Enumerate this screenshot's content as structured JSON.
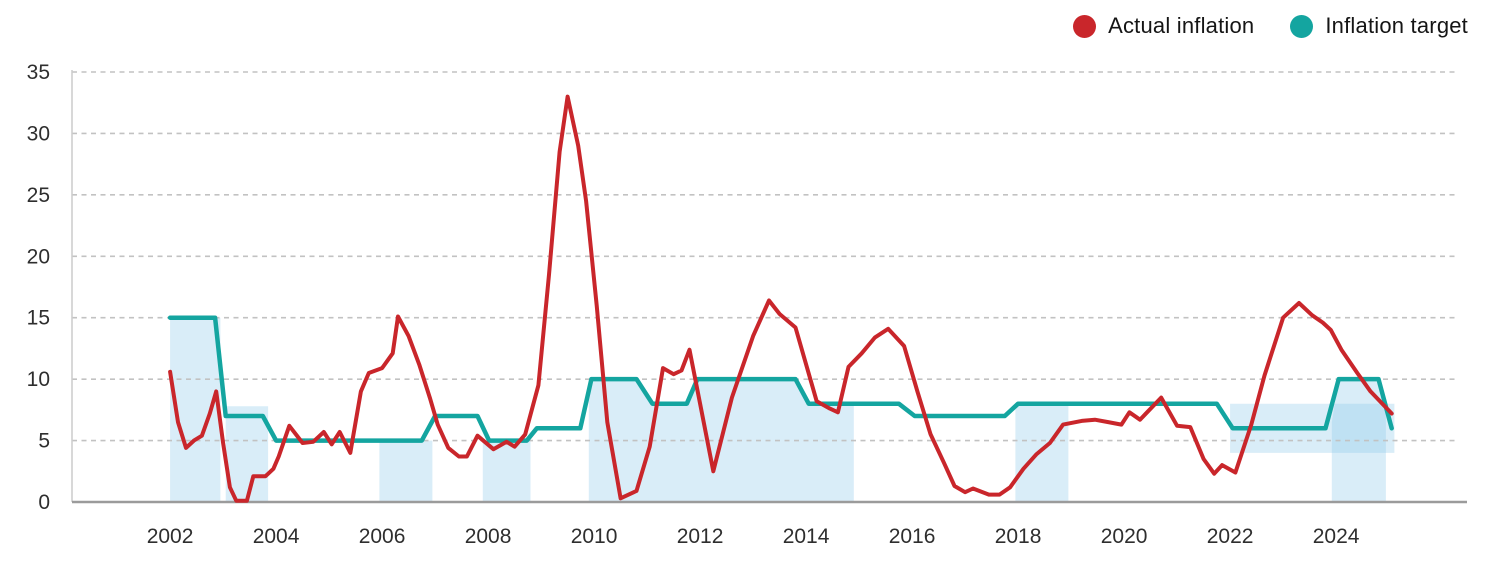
{
  "legend": {
    "items": [
      {
        "name": "actual",
        "label": "Actual inflation",
        "color": "#c9262b"
      },
      {
        "name": "target",
        "label": "Inflation target",
        "color": "#14a5a0"
      }
    ],
    "position": "top-right"
  },
  "chart_data": {
    "type": "line",
    "title": "",
    "xlabel": "",
    "ylabel": "",
    "grid": "horizontal-dashed",
    "xlim": [
      2000.15,
      2026.47
    ],
    "ylim": [
      0,
      35
    ],
    "x_ticks": [
      2002,
      2004,
      2006,
      2008,
      2010,
      2012,
      2014,
      2016,
      2018,
      2020,
      2022,
      2024
    ],
    "y_ticks": [
      0,
      5,
      10,
      15,
      20,
      25,
      30,
      35
    ],
    "colors": {
      "actual_line": "#c9262b",
      "target_line": "#14a5a0",
      "band_fill": "rgba(141,200,235,0.33)",
      "gridline": "#c2c2c2",
      "axis_line": "#9b9b9b",
      "spine": "#cccccc",
      "tick_text": "#2e2e2e"
    },
    "series": [
      {
        "name": "Actual inflation",
        "points": [
          [
            2002.0,
            10.6
          ],
          [
            2002.15,
            6.5
          ],
          [
            2002.3,
            4.4
          ],
          [
            2002.45,
            5.0
          ],
          [
            2002.6,
            5.4
          ],
          [
            2002.75,
            7.2
          ],
          [
            2002.87,
            9.0
          ],
          [
            2003.0,
            4.8
          ],
          [
            2003.13,
            1.2
          ],
          [
            2003.25,
            0.1
          ],
          [
            2003.45,
            0.1
          ],
          [
            2003.57,
            2.1
          ],
          [
            2003.8,
            2.1
          ],
          [
            2003.95,
            2.7
          ],
          [
            2004.05,
            3.7
          ],
          [
            2004.25,
            6.2
          ],
          [
            2004.5,
            4.8
          ],
          [
            2004.7,
            4.9
          ],
          [
            2004.9,
            5.7
          ],
          [
            2005.05,
            4.7
          ],
          [
            2005.2,
            5.7
          ],
          [
            2005.4,
            4.0
          ],
          [
            2005.6,
            9.0
          ],
          [
            2005.75,
            10.5
          ],
          [
            2006.0,
            10.9
          ],
          [
            2006.2,
            12.1
          ],
          [
            2006.3,
            15.1
          ],
          [
            2006.5,
            13.5
          ],
          [
            2006.7,
            11.2
          ],
          [
            2006.9,
            8.5
          ],
          [
            2007.05,
            6.3
          ],
          [
            2007.25,
            4.4
          ],
          [
            2007.45,
            3.7
          ],
          [
            2007.6,
            3.7
          ],
          [
            2007.8,
            5.4
          ],
          [
            2008.1,
            4.3
          ],
          [
            2008.35,
            4.9
          ],
          [
            2008.5,
            4.5
          ],
          [
            2008.7,
            5.5
          ],
          [
            2008.95,
            9.5
          ],
          [
            2009.15,
            18.5
          ],
          [
            2009.35,
            28.5
          ],
          [
            2009.5,
            33.0
          ],
          [
            2009.7,
            29.0
          ],
          [
            2009.85,
            24.5
          ],
          [
            2010.05,
            16.0
          ],
          [
            2010.25,
            6.5
          ],
          [
            2010.5,
            0.3
          ],
          [
            2010.8,
            0.9
          ],
          [
            2011.05,
            4.5
          ],
          [
            2011.3,
            10.9
          ],
          [
            2011.5,
            10.4
          ],
          [
            2011.65,
            10.7
          ],
          [
            2011.8,
            12.4
          ],
          [
            2012.0,
            8.0
          ],
          [
            2012.25,
            2.5
          ],
          [
            2012.6,
            8.5
          ],
          [
            2013.0,
            13.5
          ],
          [
            2013.3,
            16.4
          ],
          [
            2013.5,
            15.3
          ],
          [
            2013.8,
            14.2
          ],
          [
            2014.2,
            8.2
          ],
          [
            2014.45,
            7.6
          ],
          [
            2014.6,
            7.3
          ],
          [
            2014.8,
            11.0
          ],
          [
            2015.05,
            12.1
          ],
          [
            2015.3,
            13.4
          ],
          [
            2015.55,
            14.1
          ],
          [
            2015.85,
            12.7
          ],
          [
            2016.1,
            9.0
          ],
          [
            2016.35,
            5.5
          ],
          [
            2016.6,
            3.2
          ],
          [
            2016.8,
            1.3
          ],
          [
            2017.0,
            0.8
          ],
          [
            2017.15,
            1.1
          ],
          [
            2017.45,
            0.6
          ],
          [
            2017.65,
            0.6
          ],
          [
            2017.85,
            1.2
          ],
          [
            2018.1,
            2.7
          ],
          [
            2018.35,
            3.9
          ],
          [
            2018.6,
            4.8
          ],
          [
            2018.85,
            6.3
          ],
          [
            2019.2,
            6.6
          ],
          [
            2019.45,
            6.7
          ],
          [
            2019.7,
            6.5
          ],
          [
            2019.95,
            6.3
          ],
          [
            2020.1,
            7.3
          ],
          [
            2020.3,
            6.7
          ],
          [
            2020.7,
            8.5
          ],
          [
            2021.0,
            6.2
          ],
          [
            2021.25,
            6.1
          ],
          [
            2021.5,
            3.5
          ],
          [
            2021.7,
            2.3
          ],
          [
            2021.85,
            3.0
          ],
          [
            2022.1,
            2.4
          ],
          [
            2022.4,
            6.3
          ],
          [
            2022.65,
            10.3
          ],
          [
            2023.0,
            15.0
          ],
          [
            2023.3,
            16.2
          ],
          [
            2023.55,
            15.2
          ],
          [
            2023.75,
            14.6
          ],
          [
            2023.9,
            14.0
          ],
          [
            2024.1,
            12.4
          ],
          [
            2024.4,
            10.5
          ],
          [
            2024.65,
            9.0
          ],
          [
            2025.05,
            7.2
          ]
        ]
      },
      {
        "name": "Inflation target",
        "points": [
          [
            2002.0,
            15
          ],
          [
            2002.85,
            15
          ],
          [
            2003.05,
            7
          ],
          [
            2003.75,
            7
          ],
          [
            2004.0,
            5
          ],
          [
            2006.75,
            5
          ],
          [
            2007.0,
            7
          ],
          [
            2007.8,
            7
          ],
          [
            2008.02,
            5
          ],
          [
            2008.73,
            5
          ],
          [
            2008.92,
            6
          ],
          [
            2009.74,
            6
          ],
          [
            2009.95,
            10
          ],
          [
            2010.8,
            10
          ],
          [
            2011.1,
            8
          ],
          [
            2011.75,
            8
          ],
          [
            2011.95,
            10
          ],
          [
            2013.8,
            10
          ],
          [
            2014.05,
            8
          ],
          [
            2015.75,
            8
          ],
          [
            2016.05,
            7
          ],
          [
            2017.75,
            7
          ],
          [
            2018.0,
            8
          ],
          [
            2021.75,
            8
          ],
          [
            2022.05,
            6
          ],
          [
            2023.8,
            6
          ],
          [
            2024.05,
            10
          ],
          [
            2024.8,
            10
          ],
          [
            2025.05,
            6
          ]
        ]
      }
    ],
    "target_bands": [
      {
        "bottom": 0,
        "top": [
          [
            2002.0,
            15
          ],
          [
            2002.95,
            15
          ]
        ]
      },
      {
        "bottom": 0,
        "top": [
          [
            2003.05,
            7.8
          ],
          [
            2003.85,
            7.8
          ]
        ]
      },
      {
        "bottom": 0,
        "top": [
          [
            2005.95,
            5
          ],
          [
            2006.95,
            5
          ]
        ]
      },
      {
        "bottom": 0,
        "top": [
          [
            2007.9,
            5
          ],
          [
            2008.8,
            5
          ]
        ]
      },
      {
        "bottom": 0,
        "top": [
          [
            2009.9,
            10
          ],
          [
            2010.8,
            10
          ],
          [
            2011.1,
            8
          ],
          [
            2011.75,
            8
          ],
          [
            2011.95,
            10
          ],
          [
            2013.8,
            10
          ],
          [
            2014.05,
            8
          ],
          [
            2014.9,
            8
          ]
        ]
      },
      {
        "bottom": 0,
        "top": [
          [
            2017.95,
            8
          ],
          [
            2018.95,
            8
          ]
        ]
      },
      {
        "bottom": 4,
        "top": [
          [
            2022.0,
            8
          ],
          [
            2025.1,
            8
          ]
        ]
      },
      {
        "bottom": 0,
        "top": [
          [
            2023.92,
            6.5
          ],
          [
            2024.05,
            10
          ],
          [
            2024.8,
            10
          ],
          [
            2024.94,
            8
          ]
        ]
      }
    ]
  }
}
